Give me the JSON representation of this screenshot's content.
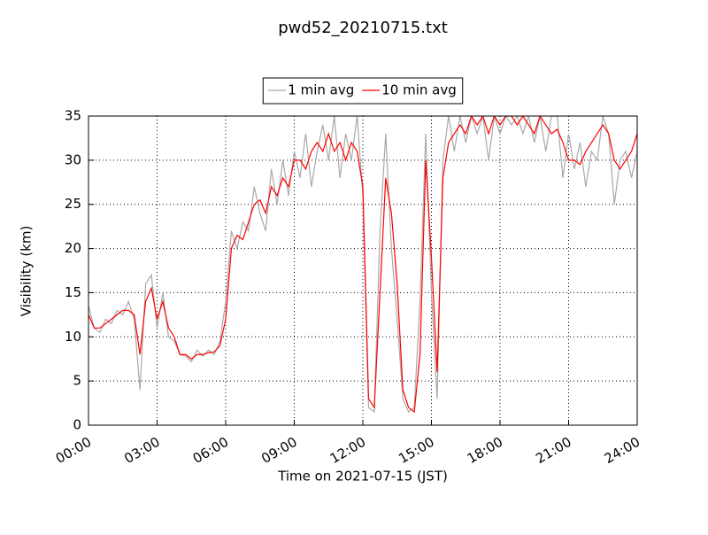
{
  "chart_data": {
    "type": "line",
    "title": "pwd52_20210715.txt",
    "xlabel": "Time on 2021-07-15 (JST)",
    "ylabel": "Visibility (km)",
    "x": [
      0,
      0.25,
      0.5,
      0.75,
      1,
      1.25,
      1.5,
      1.75,
      2,
      2.25,
      2.5,
      2.75,
      3,
      3.25,
      3.5,
      3.75,
      4,
      4.25,
      4.5,
      4.75,
      5,
      5.25,
      5.5,
      5.75,
      6,
      6.25,
      6.5,
      6.75,
      7,
      7.25,
      7.5,
      7.75,
      8,
      8.25,
      8.5,
      8.75,
      9,
      9.25,
      9.5,
      9.75,
      10,
      10.25,
      10.5,
      10.75,
      11,
      11.25,
      11.5,
      11.75,
      12,
      12.25,
      12.5,
      12.75,
      13,
      13.25,
      13.5,
      13.75,
      14,
      14.25,
      14.5,
      14.75,
      15,
      15.25,
      15.5,
      15.75,
      16,
      16.25,
      16.5,
      16.75,
      17,
      17.25,
      17.5,
      17.75,
      18,
      18.25,
      18.5,
      18.75,
      19,
      19.25,
      19.5,
      19.75,
      20,
      20.25,
      20.5,
      20.75,
      21,
      21.25,
      21.5,
      21.75,
      22,
      22.25,
      22.5,
      22.75,
      23,
      23.25,
      23.5,
      23.75,
      24
    ],
    "series": [
      {
        "name": "1 min avg",
        "color": "#a9a9a9",
        "values": [
          13.5,
          11,
          10.5,
          12,
          11.5,
          13,
          12.5,
          14,
          12,
          4,
          16,
          17,
          11,
          15,
          10,
          9.5,
          8,
          7.8,
          7.2,
          8.5,
          7.8,
          8.5,
          8,
          9.5,
          14,
          22,
          20,
          23,
          22,
          27,
          24,
          22,
          29,
          25,
          30,
          26,
          31,
          28,
          33,
          27,
          31,
          34,
          30,
          35,
          28,
          33,
          30,
          35,
          26,
          2,
          1.5,
          22,
          33,
          20,
          12,
          3,
          1.5,
          2,
          14,
          33,
          15,
          3,
          30,
          35,
          31,
          35,
          32,
          35,
          33,
          35,
          30,
          35,
          33,
          35,
          34,
          35,
          33,
          35,
          32,
          35,
          31,
          35,
          35,
          28,
          33,
          29,
          32,
          27,
          31,
          30,
          35,
          33,
          25,
          30,
          31,
          28,
          31
        ]
      },
      {
        "name": "10 min avg",
        "color": "#ff0000",
        "values": [
          12.5,
          11,
          11,
          11.5,
          12,
          12.5,
          13,
          13,
          12.5,
          8,
          14,
          15.5,
          12,
          14,
          11,
          10,
          8,
          8,
          7.5,
          8,
          8,
          8.2,
          8.3,
          9,
          12,
          20,
          21.5,
          21,
          23,
          25,
          25.5,
          24,
          27,
          26,
          28,
          27,
          30,
          30,
          29,
          31,
          32,
          31,
          33,
          31,
          32,
          30,
          32,
          31,
          27,
          3,
          2,
          15,
          28,
          24,
          16,
          4,
          2,
          1.5,
          8,
          30,
          19,
          6,
          28,
          32,
          33,
          34,
          33,
          35,
          34,
          35,
          33,
          35,
          34,
          35,
          35,
          34,
          35,
          34,
          33,
          35,
          34,
          33,
          33.5,
          32,
          30,
          30,
          29.5,
          31,
          32,
          33,
          34,
          33,
          30,
          29,
          30,
          31,
          33
        ]
      }
    ],
    "xlim": [
      0,
      24
    ],
    "xticks": [
      {
        "value": 0,
        "label": "00:00"
      },
      {
        "value": 3,
        "label": "03:00"
      },
      {
        "value": 6,
        "label": "06:00"
      },
      {
        "value": 9,
        "label": "09:00"
      },
      {
        "value": 12,
        "label": "12:00"
      },
      {
        "value": 15,
        "label": "15:00"
      },
      {
        "value": 18,
        "label": "18:00"
      },
      {
        "value": 21,
        "label": "21:00"
      },
      {
        "value": 24,
        "label": "24:00"
      }
    ],
    "ylim": [
      0,
      35
    ],
    "yticks": [
      0,
      5,
      10,
      15,
      20,
      25,
      30,
      35
    ],
    "grid": true,
    "legend": "upper center"
  }
}
